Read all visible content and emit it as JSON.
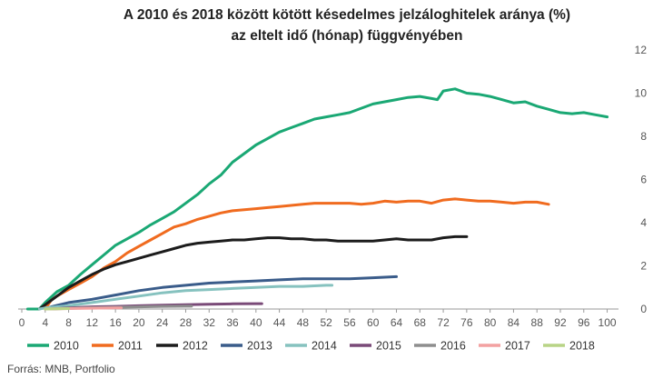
{
  "chart_data": {
    "type": "line",
    "title_line1": "A 2010 és 2018 között kötött késedelmes jelzáloghitelek aránya (%)",
    "title_line2": "az eltelt idő (hónap) függvényében",
    "xlabel": "",
    "ylabel": "",
    "xlim": [
      0,
      101
    ],
    "ylim": [
      0,
      12
    ],
    "x_ticks": [
      0,
      4,
      8,
      12,
      16,
      20,
      24,
      28,
      32,
      36,
      40,
      44,
      48,
      52,
      56,
      60,
      64,
      68,
      72,
      76,
      80,
      84,
      88,
      92,
      96,
      100
    ],
    "y_ticks": [
      0,
      2,
      4,
      6,
      8,
      10,
      12
    ],
    "y_axis_side": "right",
    "grid": false,
    "legend_position": "bottom",
    "source": "Forrás: MNB, Portfolio",
    "series": [
      {
        "name": "2010",
        "color": "#1aa874",
        "points": [
          [
            1,
            0
          ],
          [
            3,
            0
          ],
          [
            4,
            0.3
          ],
          [
            6,
            0.8
          ],
          [
            8,
            1.1
          ],
          [
            10,
            1.6
          ],
          [
            12,
            2.05
          ],
          [
            14,
            2.5
          ],
          [
            16,
            2.95
          ],
          [
            18,
            3.25
          ],
          [
            20,
            3.55
          ],
          [
            22,
            3.9
          ],
          [
            24,
            4.2
          ],
          [
            26,
            4.5
          ],
          [
            28,
            4.9
          ],
          [
            30,
            5.3
          ],
          [
            32,
            5.8
          ],
          [
            34,
            6.2
          ],
          [
            36,
            6.8
          ],
          [
            38,
            7.2
          ],
          [
            40,
            7.6
          ],
          [
            42,
            7.9
          ],
          [
            44,
            8.2
          ],
          [
            46,
            8.4
          ],
          [
            48,
            8.6
          ],
          [
            50,
            8.8
          ],
          [
            52,
            8.9
          ],
          [
            54,
            9.0
          ],
          [
            56,
            9.1
          ],
          [
            58,
            9.3
          ],
          [
            60,
            9.5
          ],
          [
            62,
            9.6
          ],
          [
            64,
            9.7
          ],
          [
            66,
            9.8
          ],
          [
            68,
            9.85
          ],
          [
            70,
            9.75
          ],
          [
            71,
            9.7
          ],
          [
            72,
            10.1
          ],
          [
            74,
            10.2
          ],
          [
            76,
            10.0
          ],
          [
            78,
            9.95
          ],
          [
            80,
            9.85
          ],
          [
            82,
            9.7
          ],
          [
            84,
            9.55
          ],
          [
            86,
            9.6
          ],
          [
            88,
            9.4
          ],
          [
            90,
            9.25
          ],
          [
            92,
            9.1
          ],
          [
            94,
            9.05
          ],
          [
            96,
            9.1
          ],
          [
            98,
            9.0
          ],
          [
            100,
            8.9
          ]
        ]
      },
      {
        "name": "2011",
        "color": "#f06b1f",
        "points": [
          [
            4,
            0
          ],
          [
            5,
            0.4
          ],
          [
            6,
            0.6
          ],
          [
            8,
            0.9
          ],
          [
            10,
            1.2
          ],
          [
            12,
            1.5
          ],
          [
            14,
            1.9
          ],
          [
            16,
            2.2
          ],
          [
            18,
            2.6
          ],
          [
            20,
            2.9
          ],
          [
            22,
            3.2
          ],
          [
            24,
            3.5
          ],
          [
            26,
            3.8
          ],
          [
            28,
            3.95
          ],
          [
            30,
            4.15
          ],
          [
            32,
            4.3
          ],
          [
            34,
            4.45
          ],
          [
            36,
            4.55
          ],
          [
            38,
            4.6
          ],
          [
            40,
            4.65
          ],
          [
            42,
            4.7
          ],
          [
            44,
            4.75
          ],
          [
            46,
            4.8
          ],
          [
            48,
            4.85
          ],
          [
            50,
            4.9
          ],
          [
            52,
            4.9
          ],
          [
            54,
            4.9
          ],
          [
            56,
            4.9
          ],
          [
            58,
            4.85
          ],
          [
            60,
            4.9
          ],
          [
            62,
            5.0
          ],
          [
            64,
            4.95
          ],
          [
            66,
            5.0
          ],
          [
            68,
            5.0
          ],
          [
            70,
            4.9
          ],
          [
            72,
            5.05
          ],
          [
            74,
            5.1
          ],
          [
            76,
            5.05
          ],
          [
            78,
            5.0
          ],
          [
            80,
            5.0
          ],
          [
            82,
            4.95
          ],
          [
            84,
            4.9
          ],
          [
            86,
            4.95
          ],
          [
            88,
            4.95
          ],
          [
            90,
            4.85
          ]
        ]
      },
      {
        "name": "2012",
        "color": "#1c1c1c",
        "points": [
          [
            3,
            0
          ],
          [
            4,
            0.2
          ],
          [
            6,
            0.6
          ],
          [
            8,
            1.0
          ],
          [
            10,
            1.3
          ],
          [
            12,
            1.6
          ],
          [
            14,
            1.85
          ],
          [
            16,
            2.05
          ],
          [
            18,
            2.2
          ],
          [
            20,
            2.35
          ],
          [
            22,
            2.5
          ],
          [
            24,
            2.65
          ],
          [
            26,
            2.8
          ],
          [
            28,
            2.95
          ],
          [
            30,
            3.05
          ],
          [
            32,
            3.1
          ],
          [
            34,
            3.15
          ],
          [
            36,
            3.2
          ],
          [
            38,
            3.2
          ],
          [
            40,
            3.25
          ],
          [
            42,
            3.3
          ],
          [
            44,
            3.3
          ],
          [
            46,
            3.25
          ],
          [
            48,
            3.25
          ],
          [
            50,
            3.2
          ],
          [
            52,
            3.2
          ],
          [
            54,
            3.15
          ],
          [
            56,
            3.15
          ],
          [
            58,
            3.15
          ],
          [
            60,
            3.15
          ],
          [
            62,
            3.2
          ],
          [
            64,
            3.25
          ],
          [
            66,
            3.2
          ],
          [
            68,
            3.2
          ],
          [
            70,
            3.2
          ],
          [
            72,
            3.3
          ],
          [
            74,
            3.35
          ],
          [
            76,
            3.35
          ]
        ]
      },
      {
        "name": "2013",
        "color": "#3a5c8a",
        "points": [
          [
            4,
            0
          ],
          [
            5,
            0.1
          ],
          [
            8,
            0.3
          ],
          [
            12,
            0.45
          ],
          [
            16,
            0.65
          ],
          [
            20,
            0.85
          ],
          [
            24,
            1.0
          ],
          [
            28,
            1.1
          ],
          [
            32,
            1.2
          ],
          [
            36,
            1.25
          ],
          [
            40,
            1.3
          ],
          [
            44,
            1.35
          ],
          [
            48,
            1.4
          ],
          [
            52,
            1.4
          ],
          [
            56,
            1.4
          ],
          [
            60,
            1.45
          ],
          [
            64,
            1.5
          ]
        ]
      },
      {
        "name": "2014",
        "color": "#86c2bf",
        "points": [
          [
            3,
            0
          ],
          [
            4,
            0.05
          ],
          [
            8,
            0.15
          ],
          [
            12,
            0.3
          ],
          [
            16,
            0.45
          ],
          [
            20,
            0.6
          ],
          [
            24,
            0.75
          ],
          [
            28,
            0.85
          ],
          [
            32,
            0.9
          ],
          [
            36,
            0.95
          ],
          [
            40,
            1.0
          ],
          [
            44,
            1.05
          ],
          [
            48,
            1.05
          ],
          [
            52,
            1.1
          ],
          [
            53,
            1.1
          ]
        ]
      },
      {
        "name": "2015",
        "color": "#7a4a78",
        "points": [
          [
            5,
            0
          ],
          [
            8,
            0.05
          ],
          [
            12,
            0.1
          ],
          [
            16,
            0.12
          ],
          [
            20,
            0.15
          ],
          [
            24,
            0.18
          ],
          [
            28,
            0.2
          ],
          [
            32,
            0.22
          ],
          [
            36,
            0.24
          ],
          [
            40,
            0.25
          ],
          [
            41,
            0.25
          ]
        ]
      },
      {
        "name": "2016",
        "color": "#8e8e8e",
        "points": [
          [
            5,
            0
          ],
          [
            8,
            0.03
          ],
          [
            12,
            0.06
          ],
          [
            16,
            0.08
          ],
          [
            20,
            0.1
          ],
          [
            24,
            0.12
          ],
          [
            28,
            0.13
          ],
          [
            29,
            0.13
          ]
        ]
      },
      {
        "name": "2017",
        "color": "#f3a1a1",
        "points": [
          [
            4,
            0
          ],
          [
            8,
            0.02
          ],
          [
            12,
            0.04
          ],
          [
            16,
            0.05
          ],
          [
            17,
            0.05
          ]
        ]
      },
      {
        "name": "2018",
        "color": "#b8d486",
        "points": [
          [
            4,
            0
          ],
          [
            6,
            0.01
          ],
          [
            8,
            0.02
          ]
        ]
      }
    ]
  }
}
